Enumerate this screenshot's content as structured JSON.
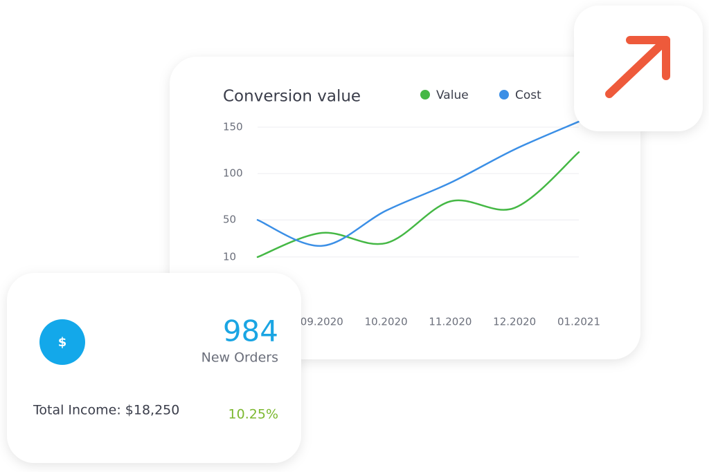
{
  "chart_data": {
    "type": "line",
    "title": "Conversion value",
    "categories": [
      null,
      "09.2020",
      "10.2020",
      "11.2020",
      "12.2020",
      "01.2021"
    ],
    "series": [
      {
        "name": "Value",
        "color": "#45b845",
        "values": [
          10,
          36,
          25,
          70,
          63,
          123
        ]
      },
      {
        "name": "Cost",
        "color": "#3b8fe6",
        "values": [
          50,
          22,
          60,
          90,
          126,
          156
        ]
      }
    ],
    "ylim": [
      -37,
      150
    ],
    "yticks": [
      10,
      50,
      100,
      150
    ],
    "grid": true
  },
  "orders_card": {
    "count": "984",
    "label": "New Orders",
    "income": "Total Income: $18,250",
    "change": "10.25%"
  }
}
